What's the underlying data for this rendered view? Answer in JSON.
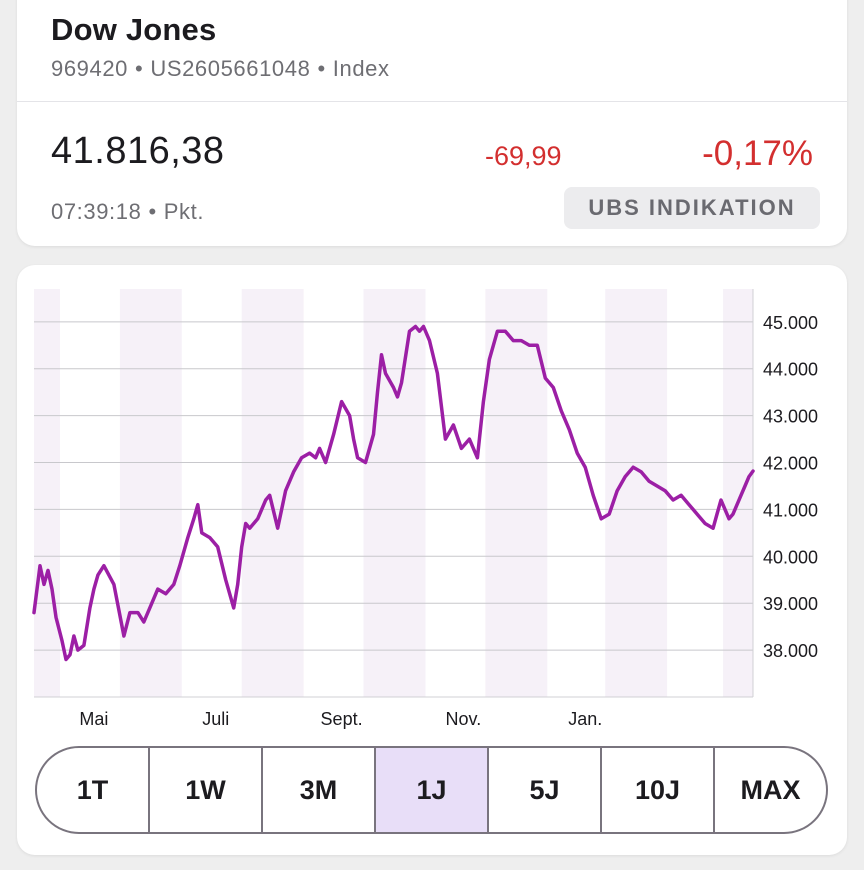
{
  "quote": {
    "name": "Dow Jones",
    "wkn": "969420",
    "isin": "US2605661048",
    "type": "Index",
    "separator": "•",
    "price": "41.816,38",
    "time": "07:39:18",
    "unit": "Pkt.",
    "change_abs": "-69,99",
    "change_pct": "-0,17%",
    "badge": "UBS INDIKATION"
  },
  "colors": {
    "line": "#9c1fa5",
    "negative": "#d32f2f",
    "month_stripe": "#f6f1f8",
    "selected_segment": "#e8def8"
  },
  "chart_data": {
    "type": "line",
    "ylim": [
      37000,
      45700
    ],
    "yticks": [
      38000,
      39000,
      40000,
      41000,
      42000,
      43000,
      44000,
      45000
    ],
    "ytick_labels": [
      "38.000",
      "39.000",
      "40.000",
      "41.000",
      "42.000",
      "43.000",
      "44.000",
      "45.000"
    ],
    "grid": true,
    "xlabels": [
      {
        "label": "Mai",
        "x": 30
      },
      {
        "label": "Juli",
        "x": 91
      },
      {
        "label": "Sept.",
        "x": 154
      },
      {
        "label": "Nov.",
        "x": 215
      },
      {
        "label": "Jan.",
        "x": 276
      }
    ],
    "month_bands": [
      [
        0,
        13
      ],
      [
        43,
        74
      ],
      [
        104,
        135
      ],
      [
        165,
        196
      ],
      [
        226,
        257
      ],
      [
        286,
        317
      ],
      [
        345,
        360
      ]
    ],
    "series": [
      {
        "x": [
          0,
          3,
          5,
          7,
          9,
          11,
          14,
          16,
          18,
          20,
          22,
          25,
          28,
          30,
          32,
          35,
          40,
          45,
          48,
          52,
          55,
          58,
          62,
          66,
          70,
          73,
          77,
          80,
          82,
          84,
          88,
          92,
          96,
          100,
          102,
          104,
          106,
          108,
          112,
          114,
          116,
          118,
          122,
          126,
          130,
          134,
          138,
          141,
          143,
          146,
          150,
          154,
          158,
          160,
          162,
          166,
          170,
          172,
          174,
          176,
          180,
          182,
          184,
          188,
          191,
          193,
          195,
          198,
          202,
          206,
          210,
          214,
          218,
          222,
          225,
          228,
          232,
          236,
          240,
          244,
          248,
          252,
          256,
          260,
          264,
          268,
          272,
          276,
          280,
          284,
          288,
          292,
          296,
          300,
          304,
          308,
          312,
          316,
          320,
          324,
          328,
          332,
          336,
          340,
          342,
          344,
          346,
          348,
          350,
          352,
          354,
          356,
          358,
          360
        ],
        "values": [
          38800,
          39800,
          39400,
          39700,
          39300,
          38700,
          38200,
          37800,
          37900,
          38300,
          38000,
          38100,
          38900,
          39300,
          39600,
          39800,
          39400,
          38300,
          38800,
          38800,
          38600,
          38900,
          39300,
          39200,
          39400,
          39800,
          40400,
          40800,
          41100,
          40500,
          40400,
          40200,
          39500,
          38900,
          39400,
          40200,
          40700,
          40600,
          40800,
          41000,
          41200,
          41300,
          40600,
          41400,
          41800,
          42100,
          42200,
          42100,
          42300,
          42000,
          42600,
          43300,
          43000,
          42500,
          42100,
          42000,
          42600,
          43500,
          44300,
          43900,
          43600,
          43400,
          43700,
          44800,
          44900,
          44800,
          44900,
          44600,
          43900,
          42500,
          42800,
          42300,
          42500,
          42100,
          43300,
          44200,
          44800,
          44800,
          44600,
          44600,
          44500,
          44500,
          43800,
          43600,
          43100,
          42700,
          42200,
          41900,
          41300,
          40800,
          40900,
          41400,
          41700,
          41900,
          41800,
          41600,
          41500,
          41400,
          41200,
          41300,
          41100,
          40900,
          40700,
          40600,
          40900,
          41200,
          41000,
          40800,
          40900,
          41100,
          41300,
          41500,
          41700,
          41816
        ]
      }
    ]
  },
  "ranges": {
    "items": [
      "1T",
      "1W",
      "3M",
      "1J",
      "5J",
      "10J",
      "MAX"
    ],
    "selected": "1J"
  }
}
